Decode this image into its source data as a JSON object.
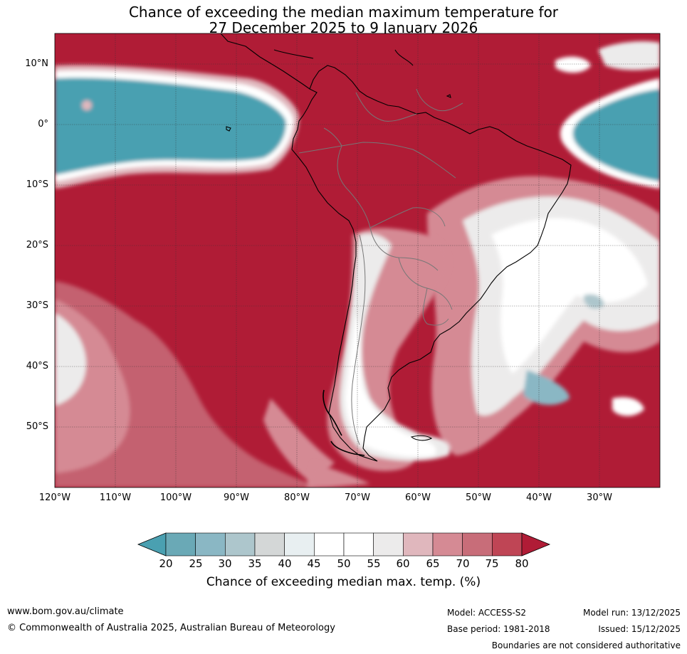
{
  "title": {
    "line1": "Chance of exceeding the median maximum temperature for",
    "line2": "27 December 2025 to 9 January 2026"
  },
  "map": {
    "lat_labels": [
      "10°N",
      "0°",
      "10°S",
      "20°S",
      "30°S",
      "40°S",
      "50°S"
    ],
    "lon_labels": [
      "120°W",
      "110°W",
      "100°W",
      "90°W",
      "80°W",
      "70°W",
      "60°W",
      "50°W",
      "40°W",
      "30°W"
    ],
    "extent": {
      "lon": [
        -120,
        -20
      ],
      "lat": [
        -60,
        15
      ]
    },
    "background_color": "#b01c36",
    "regions": [
      {
        "name": "equatorial-pacific-low",
        "class": "25"
      },
      {
        "name": "equatorial-atlantic-low",
        "class": "25"
      },
      {
        "name": "patagonia-near-median",
        "class": "50"
      },
      {
        "name": "south-atlantic-near-median",
        "class": "50"
      },
      {
        "name": "south-pacific-moderate",
        "class": "70"
      }
    ]
  },
  "legend": {
    "title": "Chance of exceeding median max. temp. (%)",
    "ticks": [
      "20",
      "25",
      "30",
      "35",
      "40",
      "45",
      "50",
      "55",
      "60",
      "65",
      "70",
      "75",
      "80"
    ],
    "colors": [
      "#4aa0b1",
      "#6aa9b6",
      "#8ab7c4",
      "#adc6cc",
      "#d4d7d7",
      "#e8eff1",
      "#ffffff",
      "#ffffff",
      "#ecebeb",
      "#e0b7bd",
      "#d58a94",
      "#c86d79",
      "#bf4555",
      "#b01c36"
    ]
  },
  "footer": {
    "url": "www.bom.gov.au/climate",
    "copyright": "© Commonwealth of Australia 2025, Australian Bureau of Meteorology",
    "model": "Model: ACCESS-S2",
    "base_period": "Base period: 1981-2018",
    "model_run": "Model run: 13/12/2025",
    "issued": "Issued: 15/12/2025",
    "disclaimer": "Boundaries are not considered authoritative"
  }
}
